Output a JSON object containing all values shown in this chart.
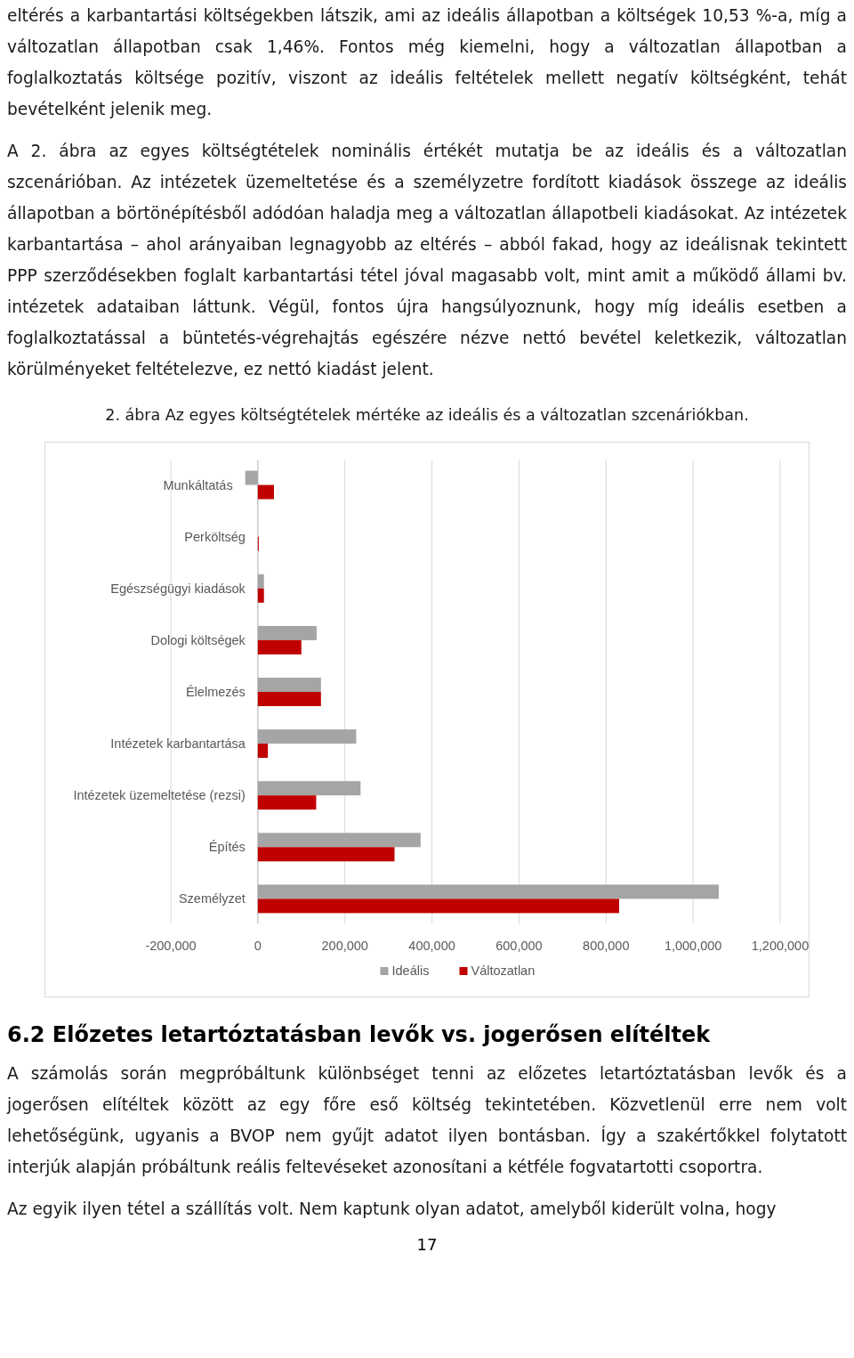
{
  "chart_data": {
    "type": "bar",
    "orientation": "horizontal",
    "title": "2. ábra Az egyes költségtételek mértéke az ideális és a változatlan szcenáriókban.",
    "categories": [
      "Munkáltatás",
      "Perköltség",
      "Egészségügyi kiadások",
      "Dologi költségek",
      "Élelmezés",
      "Intézetek karbantartása",
      "Intézetek üzemeltetése (rezsi)",
      "Építés",
      "Személyzet"
    ],
    "series": [
      {
        "name": "Ideális",
        "color": "#a5a5a5",
        "values": [
          -29000,
          0,
          14000,
          135000,
          145000,
          226000,
          236000,
          374000,
          1059000
        ]
      },
      {
        "name": "Változatlan",
        "color": "#c00000",
        "values": [
          37000,
          2000,
          14000,
          100000,
          145000,
          23000,
          134000,
          314000,
          830000
        ]
      }
    ],
    "xlim": [
      -200000,
      1200000
    ],
    "xticks": [
      {
        "value": -200000,
        "label": "-200,000"
      },
      0,
      {
        "value": 200000,
        "label": "200,000"
      },
      {
        "value": 400000,
        "label": "400,000"
      },
      {
        "value": 600000,
        "label": "600,000"
      },
      {
        "value": 800000,
        "label": "800,000"
      },
      {
        "value": 1000000,
        "label": "1,000,000"
      },
      {
        "value": 1200000,
        "label": "1,200,000"
      }
    ],
    "grid": "x",
    "legend": "bottom",
    "annotations": [
      "eltérés a karbantartási költségekben látszik, ami az ideális állapotban a költségek 10,53 %-a, míg a változatlan állapotban csak 1,46%. Fontos még kiemelni, hogy a változatlan állapotban a foglalkoztatás költsége pozitív, viszont az ideális feltételek mellett negatív költségként, tehát bevételként jelenik meg.",
      "A 2. ábra az egyes költségtételek nominális értékét mutatja be az ideális és a változatlan szcenárióban. Az intézetek üzemeltetése és a személyzetre fordított kiadások összege az ideális állapotban a börtönépítésből adódóan haladja meg a változatlan állapotbeli kiadásokat. Az intézetek karbantartása – ahol arányaiban legnagyobb az eltérés – abból fakad, hogy az ideálisnak tekintett PPP szerződésekben foglalt karbantartási tétel jóval magasabb volt, mint amit a működő állami bv. intézetek adataiban láttunk. Végül, fontos újra hangsúlyoznunk, hogy míg ideális esetben a foglalkoztatással a büntetés-végrehajtás egészére nézve nettó bevétel keletkezik, változatlan körülményeket feltételezve, ez nettó kiadást jelent.",
      "6.2 Előzetes letartóztatásban levők vs. jogerősen elítéltek",
      "A számolás során megpróbáltunk különbséget tenni az előzetes letartóztatásban levők és a jogerősen elítéltek között az egy főre eső költség tekintetében. Közvetlenül erre nem volt lehetőségünk, ugyanis a BVOP nem gyűjt adatot ilyen bontásban. Így a szakértőkkel folytatott interjúk alapján próbáltunk reális feltevéseket azonosítani a kétféle fogvatartotti csoportra.",
      "Az egyik ilyen tétel a szállítás volt. Nem kaptunk olyan adatot, amelyből kiderült volna, hogy",
      "17"
    ]
  }
}
